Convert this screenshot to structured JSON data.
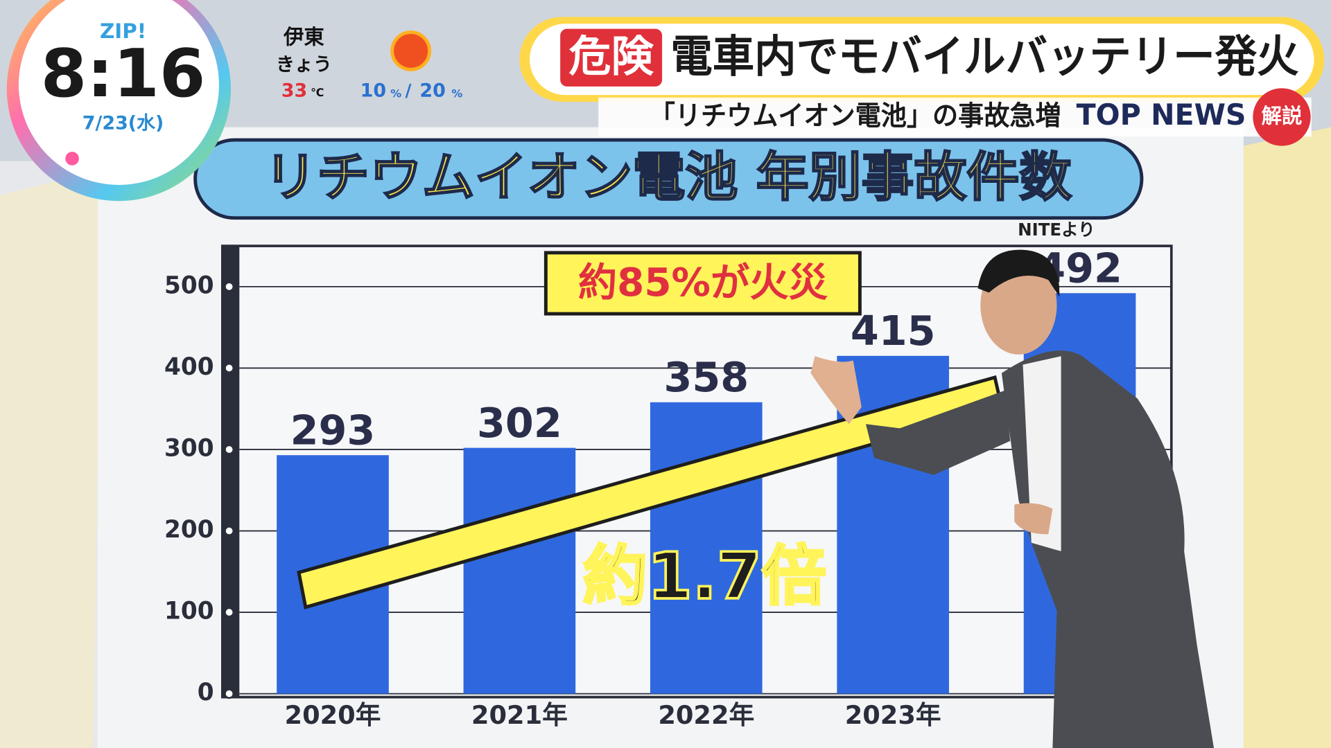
{
  "overlay": {
    "show": "ZIP!",
    "time": "8:16",
    "date": "7/23(水)",
    "weather": {
      "place": "伊東",
      "day": "きょう",
      "temp": "33",
      "temp_unit": "℃",
      "rain_am": "10",
      "rain_am_unit": "%",
      "sep": "/",
      "rain_pm": "20",
      "rain_pm_unit": "%"
    },
    "headline": {
      "tag": "危険",
      "title": "電車内でモバイルバッテリー発火",
      "subtitle": "「リチウムイオン電池」の事故急増",
      "section": "TOP NEWS",
      "badge": "解説"
    }
  },
  "chart_data": {
    "type": "bar",
    "title": "リチウムイオン電池 年別事故件数",
    "source": "NITEより",
    "categories": [
      "2020年",
      "2021年",
      "2022年",
      "2023年",
      null
    ],
    "values": [
      293,
      302,
      358,
      415,
      492
    ],
    "color": "#2f68de",
    "ylim": [
      0,
      550
    ],
    "yticks": [
      0,
      100,
      200,
      300,
      400,
      500
    ],
    "grid": true,
    "annotations": [
      "約85%が火災",
      "約1.7倍"
    ]
  }
}
